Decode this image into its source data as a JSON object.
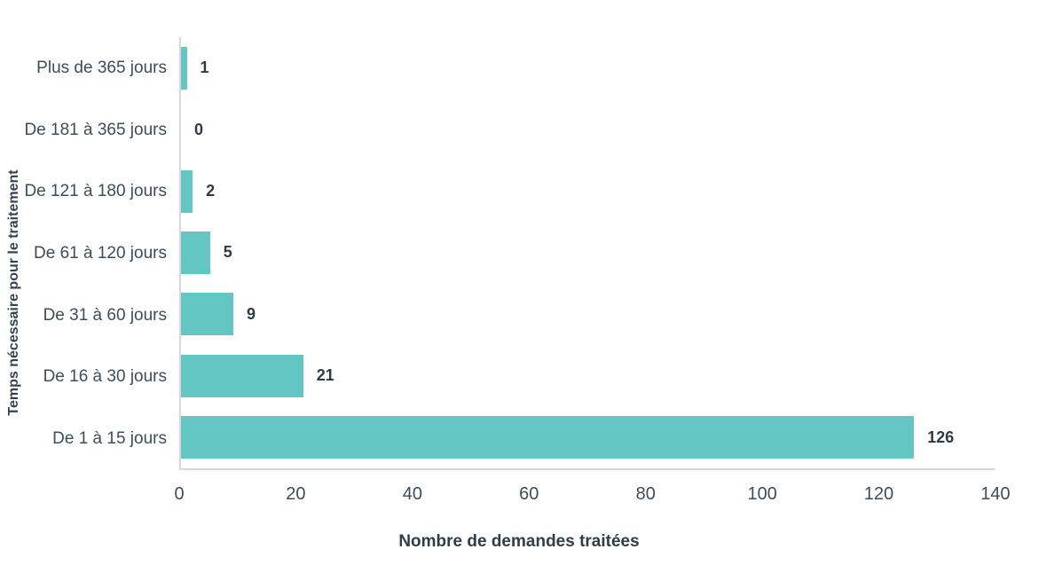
{
  "chart_data": {
    "type": "bar",
    "orientation": "horizontal",
    "categories": [
      "Plus de 365 jours",
      "De 181 à 365 jours",
      "De 121 à 180 jours",
      "De 61 à 120 jours",
      "De 31 à 60 jours",
      "De 16 à 30 jours",
      "De 1 à 15 jours"
    ],
    "values": [
      1,
      0,
      2,
      5,
      9,
      21,
      126
    ],
    "title": "",
    "xlabel": "Nombre de demandes traitées",
    "ylabel": "Temps nécessaire pour le traitement",
    "xlim": [
      0,
      140
    ],
    "xticks": [
      0,
      20,
      40,
      60,
      80,
      100,
      120,
      140
    ],
    "grid": false,
    "legend": false,
    "value_labels_shown": true,
    "colors": {
      "bar": "#64c6c3",
      "axis_line": "#d8d8d8",
      "category_text": "#3d4d59",
      "tick_text": "#3d4d59",
      "value_text": "#2c3b49",
      "axis_title_text": "#2f3e4c",
      "background": "#ffffff"
    }
  }
}
